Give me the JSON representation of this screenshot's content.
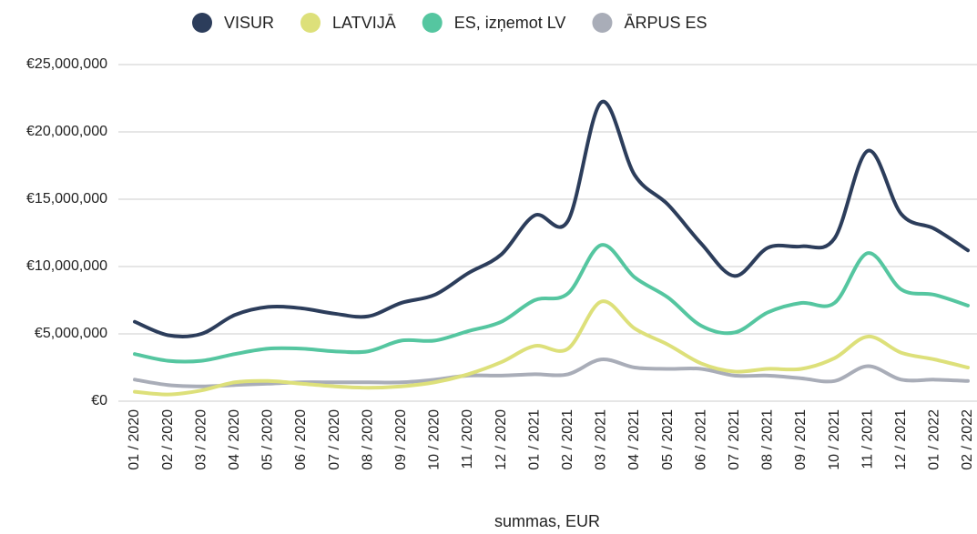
{
  "chart_data": {
    "type": "line",
    "categories": [
      "01 / 2020",
      "02 / 2020",
      "03 / 2020",
      "04 / 2020",
      "05 / 2020",
      "06 / 2020",
      "07 / 2020",
      "08 / 2020",
      "09 / 2020",
      "10 / 2020",
      "11 / 2020",
      "12 / 2020",
      "01 / 2021",
      "02 / 2021",
      "03 / 2021",
      "04 / 2021",
      "05 / 2021",
      "06 / 2021",
      "07 / 2021",
      "08 / 2021",
      "09 / 2021",
      "10 / 2021",
      "11 / 2021",
      "12 / 2021",
      "01 / 2022",
      "02 / 2022"
    ],
    "series": [
      {
        "name": "VISUR",
        "color": "#2c3d5b",
        "values": [
          5900000,
          4900000,
          5000000,
          6400000,
          7000000,
          6900000,
          6500000,
          6300000,
          7300000,
          7900000,
          9500000,
          10900000,
          13800000,
          13400000,
          22200000,
          16800000,
          14600000,
          11700000,
          9300000,
          11400000,
          11500000,
          12100000,
          18600000,
          13900000,
          12800000,
          11200000
        ]
      },
      {
        "name": "LATVIJĀ",
        "color": "#dde07a",
        "values": [
          700000,
          500000,
          800000,
          1400000,
          1500000,
          1300000,
          1100000,
          1000000,
          1100000,
          1400000,
          2000000,
          2900000,
          4100000,
          3900000,
          7400000,
          5400000,
          4200000,
          2800000,
          2200000,
          2400000,
          2400000,
          3200000,
          4800000,
          3600000,
          3100000,
          2500000
        ]
      },
      {
        "name": "ES, izņemot LV",
        "color": "#55c6a0",
        "values": [
          3500000,
          3000000,
          3000000,
          3500000,
          3900000,
          3900000,
          3700000,
          3700000,
          4500000,
          4500000,
          5200000,
          5900000,
          7500000,
          8000000,
          11600000,
          9200000,
          7700000,
          5600000,
          5100000,
          6600000,
          7300000,
          7300000,
          11000000,
          8300000,
          7900000,
          7100000
        ]
      },
      {
        "name": "ĀRPUS ES",
        "color": "#a9adb8",
        "values": [
          1600000,
          1200000,
          1100000,
          1200000,
          1300000,
          1400000,
          1400000,
          1400000,
          1400000,
          1600000,
          1900000,
          1900000,
          2000000,
          2000000,
          3100000,
          2500000,
          2400000,
          2400000,
          1900000,
          1900000,
          1700000,
          1500000,
          2600000,
          1600000,
          1600000,
          1500000
        ]
      }
    ],
    "xlabel": "summas, EUR",
    "ylim": [
      0,
      25000000
    ],
    "yticks": [
      {
        "value": 0,
        "label": "€0"
      },
      {
        "value": 5000000,
        "label": "€5,000,000"
      },
      {
        "value": 10000000,
        "label": "€10,000,000"
      },
      {
        "value": 15000000,
        "label": "€15,000,000"
      },
      {
        "value": 20000000,
        "label": "€20,000,000"
      },
      {
        "value": 25000000,
        "label": "€25,000,000"
      }
    ],
    "grid": true,
    "legend": "top"
  }
}
